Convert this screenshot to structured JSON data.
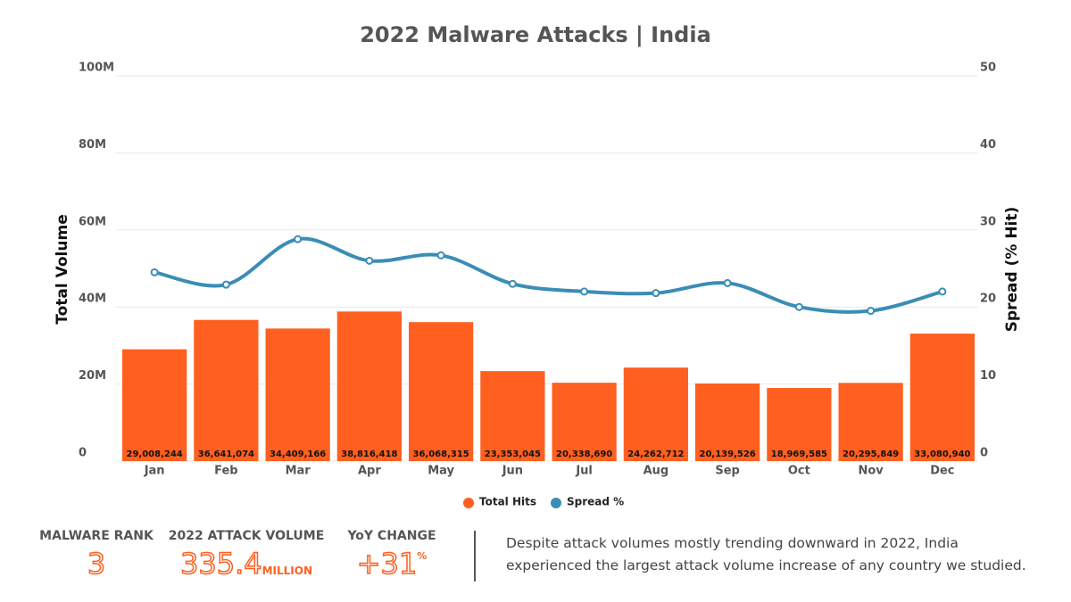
{
  "chart_data": {
    "type": "bar-line",
    "title": "2022 Malware Attacks | India",
    "categories": [
      "Jan",
      "Feb",
      "Mar",
      "Apr",
      "May",
      "Jun",
      "Jul",
      "Aug",
      "Sep",
      "Oct",
      "Nov",
      "Dec"
    ],
    "series": [
      {
        "name": "Total Hits",
        "type": "bar",
        "color": "#ff5f1f",
        "values": [
          29008244,
          36641074,
          34409166,
          38816418,
          36068315,
          23353045,
          20338690,
          24262712,
          20139526,
          18969585,
          20295849,
          33080940
        ],
        "value_labels": [
          "29,008,244",
          "36,641,074",
          "34,409,166",
          "38,816,418",
          "36,068,315",
          "23,353,045",
          "20,338,690",
          "24,262,712",
          "20,139,526",
          "18,969,585",
          "20,295,849",
          "33,080,940"
        ]
      },
      {
        "name": "Spread %",
        "type": "line",
        "axis": "y2",
        "color": "#3a8db5",
        "values": [
          24.5,
          22.9,
          28.8,
          26.0,
          26.7,
          23.0,
          22.0,
          21.8,
          23.1,
          20.0,
          19.5,
          22.0
        ]
      }
    ],
    "ylabel": "Total Volume",
    "y2label": "Spread (% Hit)",
    "ylim": [
      0,
      100000000
    ],
    "yticks": [
      0,
      {
        "value": 20000000,
        "label": "20M"
      },
      {
        "value": 40000000,
        "label": "40M"
      },
      {
        "value": 60000000,
        "label": "60M"
      },
      {
        "value": 80000000,
        "label": "80M"
      },
      {
        "value": 100000000,
        "label": "100M"
      }
    ],
    "y2lim": [
      0,
      50
    ],
    "y2ticks": [
      0,
      10,
      20,
      30,
      40,
      50
    ],
    "grid": true,
    "legend": "bottom"
  },
  "stats": [
    {
      "label": "MALWARE RANK",
      "value": "3"
    },
    {
      "label": "2022 ATTACK VOLUME",
      "value": "335.4",
      "unit": "MILLION"
    },
    {
      "label": "YoY CHANGE",
      "value": "+31",
      "unit": "%"
    }
  ],
  "note": "Despite attack volumes mostly trending downward in 2022, India experienced the largest attack volume increase of any country we studied."
}
